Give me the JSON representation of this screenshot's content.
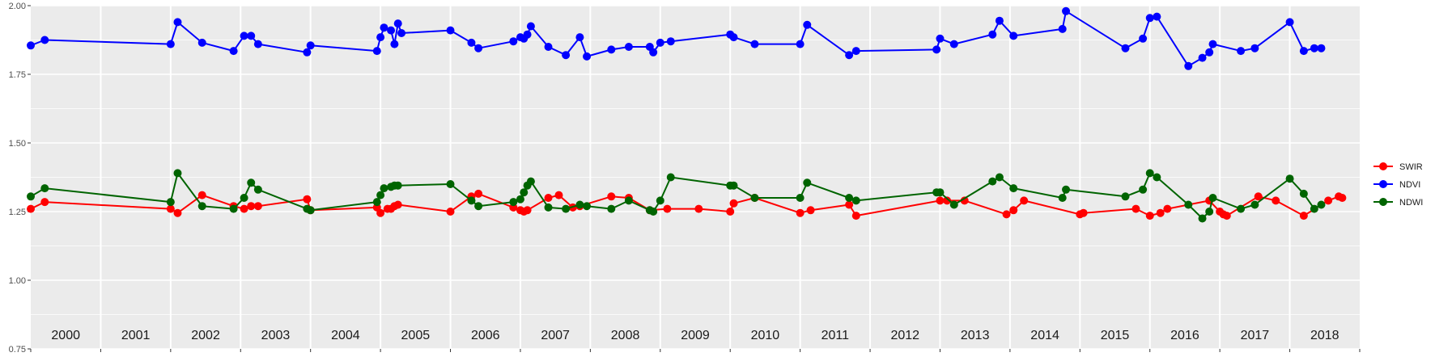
{
  "colors": {
    "panel_bg": "#EBEBEB",
    "grid": "#FFFFFF",
    "SWIR": "#FF0000",
    "NDVI": "#0000FF",
    "NDWI": "#006400"
  },
  "legend": {
    "placement": "right",
    "items": [
      {
        "label": "SWIR",
        "color": "#FF0000"
      },
      {
        "label": "NDVI",
        "color": "#0000FF"
      },
      {
        "label": "NDWI",
        "color": "#006400"
      }
    ]
  },
  "chart_data": {
    "type": "line",
    "title": "",
    "xlabel": "",
    "ylabel": "",
    "xlim": [
      2000.0,
      2019.0
    ],
    "ylim": [
      0.75,
      2.0
    ],
    "y_ticks": [
      "0.75",
      "1.00",
      "1.25",
      "1.50",
      "1.75",
      "2.00"
    ],
    "grid": true,
    "year_labels": [
      "2000",
      "2001",
      "2002",
      "2003",
      "2004",
      "2005",
      "2006",
      "2007",
      "2008",
      "2009",
      "2010",
      "2011",
      "2012",
      "2013",
      "2014",
      "2015",
      "2016",
      "2017",
      "2018"
    ],
    "series": [
      {
        "name": "SWIR",
        "color": "#FF0000",
        "points": [
          [
            2000.0,
            1.26
          ],
          [
            2000.2,
            1.285
          ],
          [
            2002.0,
            1.26
          ],
          [
            2002.1,
            1.245
          ],
          [
            2002.45,
            1.31
          ],
          [
            2002.9,
            1.27
          ],
          [
            2003.05,
            1.26
          ],
          [
            2003.15,
            1.27
          ],
          [
            2003.25,
            1.27
          ],
          [
            2003.95,
            1.295
          ],
          [
            2004.0,
            1.255
          ],
          [
            2004.95,
            1.265
          ],
          [
            2005.0,
            1.245
          ],
          [
            2005.1,
            1.26
          ],
          [
            2005.15,
            1.26
          ],
          [
            2005.2,
            1.27
          ],
          [
            2005.25,
            1.275
          ],
          [
            2006.0,
            1.25
          ],
          [
            2006.3,
            1.305
          ],
          [
            2006.4,
            1.315
          ],
          [
            2006.9,
            1.265
          ],
          [
            2007.0,
            1.255
          ],
          [
            2007.05,
            1.25
          ],
          [
            2007.1,
            1.255
          ],
          [
            2007.4,
            1.3
          ],
          [
            2007.55,
            1.31
          ],
          [
            2007.75,
            1.265
          ],
          [
            2007.85,
            1.27
          ],
          [
            2008.3,
            1.305
          ],
          [
            2008.55,
            1.3
          ],
          [
            2008.85,
            1.255
          ],
          [
            2009.1,
            1.26
          ],
          [
            2009.55,
            1.26
          ],
          [
            2010.0,
            1.25
          ],
          [
            2010.05,
            1.28
          ],
          [
            2010.35,
            1.3
          ],
          [
            2011.0,
            1.245
          ],
          [
            2011.15,
            1.255
          ],
          [
            2011.7,
            1.275
          ],
          [
            2011.8,
            1.235
          ],
          [
            2013.0,
            1.29
          ],
          [
            2013.1,
            1.29
          ],
          [
            2013.35,
            1.29
          ],
          [
            2013.95,
            1.24
          ],
          [
            2014.05,
            1.255
          ],
          [
            2014.2,
            1.29
          ],
          [
            2015.0,
            1.24
          ],
          [
            2015.05,
            1.245
          ],
          [
            2015.8,
            1.26
          ],
          [
            2016.0,
            1.235
          ],
          [
            2016.15,
            1.245
          ],
          [
            2016.25,
            1.26
          ],
          [
            2016.85,
            1.29
          ],
          [
            2017.0,
            1.25
          ],
          [
            2017.05,
            1.24
          ],
          [
            2017.1,
            1.235
          ],
          [
            2017.55,
            1.305
          ],
          [
            2017.8,
            1.29
          ],
          [
            2018.2,
            1.235
          ],
          [
            2018.55,
            1.29
          ],
          [
            2018.7,
            1.305
          ],
          [
            2018.75,
            1.3
          ]
        ]
      },
      {
        "name": "NDVI",
        "color": "#0000FF",
        "points": [
          [
            2000.0,
            1.855
          ],
          [
            2000.2,
            1.875
          ],
          [
            2002.0,
            1.86
          ],
          [
            2002.1,
            1.94
          ],
          [
            2002.45,
            1.865
          ],
          [
            2002.9,
            1.835
          ],
          [
            2003.05,
            1.89
          ],
          [
            2003.15,
            1.89
          ],
          [
            2003.25,
            1.86
          ],
          [
            2003.95,
            1.83
          ],
          [
            2004.0,
            1.855
          ],
          [
            2004.95,
            1.835
          ],
          [
            2005.0,
            1.885
          ],
          [
            2005.05,
            1.92
          ],
          [
            2005.15,
            1.91
          ],
          [
            2005.2,
            1.86
          ],
          [
            2005.25,
            1.935
          ],
          [
            2005.3,
            1.9
          ],
          [
            2006.0,
            1.91
          ],
          [
            2006.3,
            1.865
          ],
          [
            2006.4,
            1.845
          ],
          [
            2006.9,
            1.87
          ],
          [
            2007.0,
            1.885
          ],
          [
            2007.05,
            1.88
          ],
          [
            2007.1,
            1.895
          ],
          [
            2007.15,
            1.925
          ],
          [
            2007.4,
            1.85
          ],
          [
            2007.65,
            1.82
          ],
          [
            2007.85,
            1.885
          ],
          [
            2007.95,
            1.815
          ],
          [
            2008.3,
            1.84
          ],
          [
            2008.55,
            1.85
          ],
          [
            2008.85,
            1.85
          ],
          [
            2008.9,
            1.83
          ],
          [
            2009.0,
            1.865
          ],
          [
            2009.15,
            1.87
          ],
          [
            2010.0,
            1.895
          ],
          [
            2010.05,
            1.885
          ],
          [
            2010.35,
            1.86
          ],
          [
            2011.0,
            1.86
          ],
          [
            2011.1,
            1.93
          ],
          [
            2011.7,
            1.82
          ],
          [
            2011.8,
            1.835
          ],
          [
            2012.95,
            1.84
          ],
          [
            2013.0,
            1.88
          ],
          [
            2013.2,
            1.86
          ],
          [
            2013.75,
            1.895
          ],
          [
            2013.85,
            1.945
          ],
          [
            2014.05,
            1.89
          ],
          [
            2014.75,
            1.915
          ],
          [
            2014.8,
            1.98
          ],
          [
            2015.65,
            1.845
          ],
          [
            2015.9,
            1.88
          ],
          [
            2016.0,
            1.955
          ],
          [
            2016.1,
            1.96
          ],
          [
            2016.55,
            1.78
          ],
          [
            2016.75,
            1.81
          ],
          [
            2016.85,
            1.83
          ],
          [
            2016.9,
            1.86
          ],
          [
            2017.3,
            1.835
          ],
          [
            2017.5,
            1.845
          ],
          [
            2018.0,
            1.94
          ],
          [
            2018.2,
            1.835
          ],
          [
            2018.35,
            1.845
          ],
          [
            2018.45,
            1.845
          ]
        ]
      },
      {
        "name": "NDWI",
        "color": "#006400",
        "points": [
          [
            2000.0,
            1.305
          ],
          [
            2000.2,
            1.335
          ],
          [
            2002.0,
            1.285
          ],
          [
            2002.1,
            1.39
          ],
          [
            2002.45,
            1.27
          ],
          [
            2002.9,
            1.26
          ],
          [
            2003.05,
            1.3
          ],
          [
            2003.15,
            1.355
          ],
          [
            2003.25,
            1.33
          ],
          [
            2003.95,
            1.26
          ],
          [
            2004.0,
            1.255
          ],
          [
            2004.95,
            1.285
          ],
          [
            2005.0,
            1.31
          ],
          [
            2005.05,
            1.335
          ],
          [
            2005.15,
            1.34
          ],
          [
            2005.2,
            1.345
          ],
          [
            2005.25,
            1.345
          ],
          [
            2006.0,
            1.35
          ],
          [
            2006.3,
            1.29
          ],
          [
            2006.4,
            1.27
          ],
          [
            2006.9,
            1.285
          ],
          [
            2007.0,
            1.295
          ],
          [
            2007.05,
            1.32
          ],
          [
            2007.1,
            1.345
          ],
          [
            2007.15,
            1.36
          ],
          [
            2007.4,
            1.265
          ],
          [
            2007.65,
            1.26
          ],
          [
            2007.85,
            1.275
          ],
          [
            2007.95,
            1.27
          ],
          [
            2008.3,
            1.26
          ],
          [
            2008.55,
            1.29
          ],
          [
            2008.85,
            1.255
          ],
          [
            2008.9,
            1.25
          ],
          [
            2009.0,
            1.29
          ],
          [
            2009.15,
            1.375
          ],
          [
            2010.0,
            1.345
          ],
          [
            2010.05,
            1.345
          ],
          [
            2010.35,
            1.3
          ],
          [
            2011.0,
            1.3
          ],
          [
            2011.1,
            1.355
          ],
          [
            2011.7,
            1.3
          ],
          [
            2011.8,
            1.29
          ],
          [
            2012.95,
            1.32
          ],
          [
            2013.0,
            1.32
          ],
          [
            2013.2,
            1.275
          ],
          [
            2013.75,
            1.36
          ],
          [
            2013.85,
            1.375
          ],
          [
            2014.05,
            1.335
          ],
          [
            2014.75,
            1.3
          ],
          [
            2014.8,
            1.33
          ],
          [
            2015.65,
            1.305
          ],
          [
            2015.9,
            1.33
          ],
          [
            2016.0,
            1.39
          ],
          [
            2016.1,
            1.375
          ],
          [
            2016.55,
            1.275
          ],
          [
            2016.75,
            1.225
          ],
          [
            2016.85,
            1.25
          ],
          [
            2016.9,
            1.3
          ],
          [
            2017.3,
            1.26
          ],
          [
            2017.5,
            1.275
          ],
          [
            2018.0,
            1.37
          ],
          [
            2018.2,
            1.315
          ],
          [
            2018.35,
            1.26
          ],
          [
            2018.45,
            1.275
          ]
        ]
      }
    ]
  }
}
